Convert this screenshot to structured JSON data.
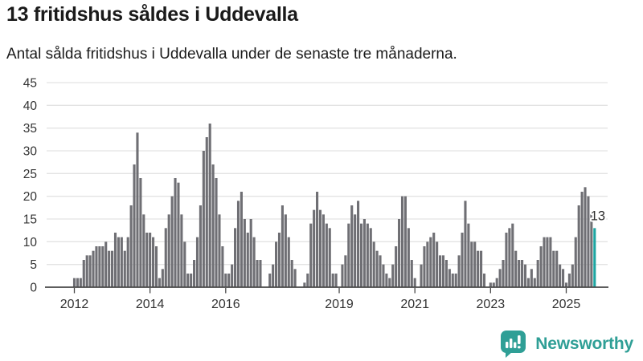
{
  "header": {
    "title": "13 fritidshus såldes i Uddevalla",
    "subtitle": "Antal sålda fritidshus i Uddevalla under de senaste tre månaderna."
  },
  "footer": {
    "brand": "Newsworthy"
  },
  "chart_data": {
    "type": "bar",
    "title": "13 fritidshus såldes i Uddevalla",
    "subtitle": "Antal sålda fritidshus i Uddevalla under de senaste tre månaderna.",
    "xlabel": "",
    "ylabel": "",
    "grid": true,
    "legend_position": "none",
    "ylim": [
      0,
      45
    ],
    "yticks": [
      0,
      5,
      10,
      15,
      20,
      25,
      30,
      35,
      40,
      45
    ],
    "x_start": "2012-01",
    "x_frequency": "monthly",
    "xticks": [
      {
        "label": "2012",
        "index": 0
      },
      {
        "label": "2014",
        "index": 24
      },
      {
        "label": "2016",
        "index": 48
      },
      {
        "label": "2019",
        "index": 84
      },
      {
        "label": "2021",
        "index": 108
      },
      {
        "label": "2023",
        "index": 132
      },
      {
        "label": "2025",
        "index": 156
      }
    ],
    "values": [
      2,
      2,
      2,
      6,
      7,
      7,
      8,
      9,
      9,
      9,
      10,
      8,
      8,
      12,
      11,
      11,
      8,
      11,
      18,
      27,
      34,
      24,
      16,
      12,
      12,
      11,
      9,
      2,
      4,
      13,
      16,
      20,
      24,
      23,
      16,
      10,
      3,
      3,
      6,
      11,
      18,
      30,
      33,
      36,
      27,
      24,
      16,
      9,
      3,
      3,
      5,
      13,
      19,
      21,
      15,
      12,
      15,
      11,
      6,
      6,
      0,
      0,
      3,
      5,
      10,
      12,
      18,
      16,
      11,
      6,
      4,
      0,
      0,
      1,
      3,
      14,
      17,
      21,
      17,
      16,
      14,
      13,
      3,
      3,
      0,
      5,
      7,
      14,
      18,
      16,
      19,
      14,
      15,
      14,
      13,
      10,
      8,
      7,
      5,
      3,
      2,
      5,
      9,
      15,
      20,
      20,
      13,
      6,
      2,
      0,
      5,
      9,
      10,
      11,
      12,
      10,
      7,
      7,
      6,
      4,
      3,
      3,
      7,
      12,
      19,
      14,
      10,
      10,
      8,
      8,
      3,
      0,
      1,
      1,
      2,
      4,
      6,
      12,
      13,
      14,
      8,
      6,
      6,
      5,
      2,
      4,
      2,
      6,
      9,
      11,
      11,
      11,
      8,
      8,
      5,
      4,
      1,
      3,
      5,
      11,
      18,
      21,
      22,
      20,
      16,
      13
    ],
    "highlight": {
      "index": 165,
      "value": 13,
      "label": "13"
    },
    "colors": {
      "bar": "#6f6f74",
      "highlight": "#1ea5a2",
      "grid": "#e3e3e3",
      "axis": "#474747",
      "tick_label": "#333333",
      "annotation_text": "#2e2e2e",
      "annotation_halo": "#ffffff",
      "brand": "#2f9f96"
    }
  }
}
